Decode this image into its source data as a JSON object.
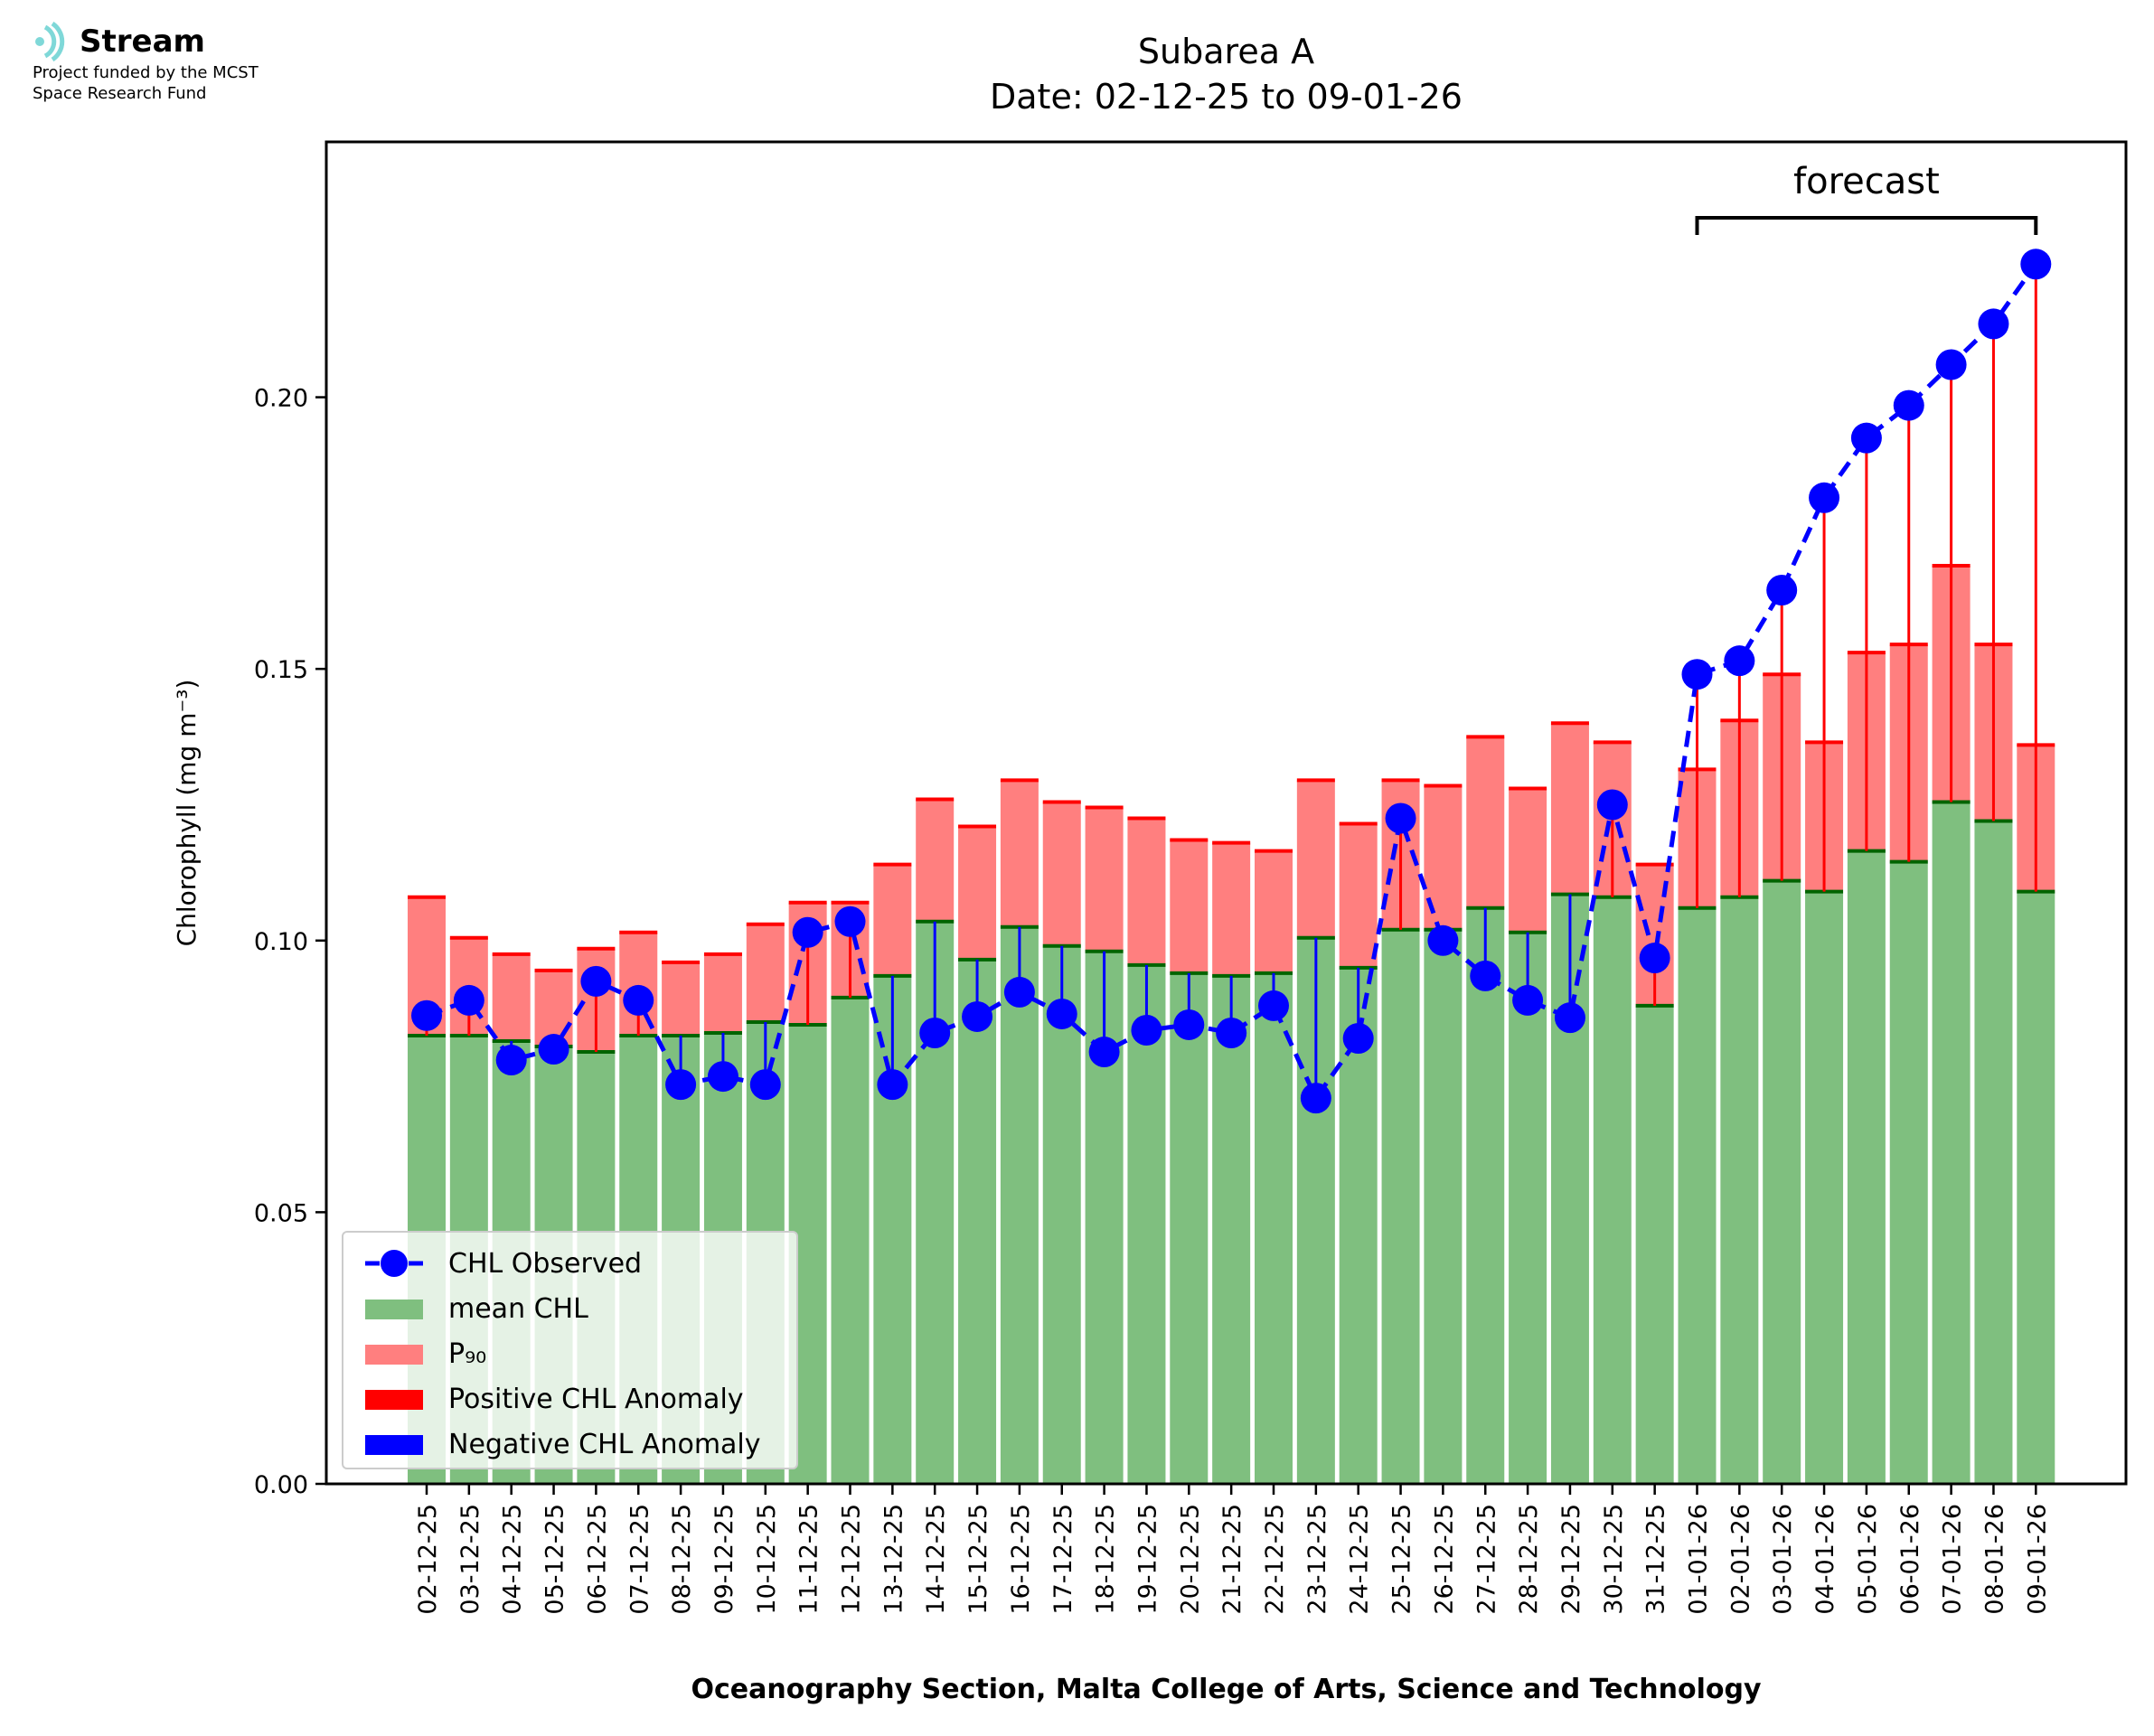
{
  "header": {
    "logo_text": "Stream",
    "funded_line1": "Project funded by the MCST",
    "funded_line2": "Space Research Fund"
  },
  "colors": {
    "mean_bar": "#7fbf7f",
    "mean_edge": "#006400",
    "p90_bar": "#ff7f7f",
    "p90_edge": "#ff0000",
    "observed": "#0000ff",
    "logo_accent": "#7fd8d8"
  },
  "chart_data": {
    "type": "bar",
    "title": "Subarea A",
    "subtitle": "Date: 02-12-25 to 09-01-26",
    "xlabel": "Oceanography Section, Malta College of Arts, Science and Technology",
    "ylabel": "Chlorophyll (mg m⁻³)",
    "ylim": [
      0,
      0.247
    ],
    "yticks": [
      "0.00",
      "0.05",
      "0.10",
      "0.15",
      "0.20"
    ],
    "ytick_values": [
      0.0,
      0.05,
      0.1,
      0.15,
      0.2
    ],
    "categories": [
      "02-12-25",
      "03-12-25",
      "04-12-25",
      "05-12-25",
      "06-12-25",
      "07-12-25",
      "08-12-25",
      "09-12-25",
      "10-12-25",
      "11-12-25",
      "12-12-25",
      "13-12-25",
      "14-12-25",
      "15-12-25",
      "16-12-25",
      "17-12-25",
      "18-12-25",
      "19-12-25",
      "20-12-25",
      "21-12-25",
      "22-12-25",
      "23-12-25",
      "24-12-25",
      "25-12-25",
      "26-12-25",
      "27-12-25",
      "28-12-25",
      "29-12-25",
      "30-12-25",
      "31-12-25",
      "01-01-26",
      "02-01-26",
      "03-01-26",
      "04-01-26",
      "05-01-26",
      "06-01-26",
      "07-01-26",
      "08-01-26",
      "09-01-26"
    ],
    "series": [
      {
        "name": "mean CHL",
        "values": [
          0.0825,
          0.0825,
          0.0815,
          0.0805,
          0.0795,
          0.0825,
          0.0825,
          0.083,
          0.085,
          0.0845,
          0.0895,
          0.0935,
          0.1035,
          0.0965,
          0.1025,
          0.099,
          0.098,
          0.0955,
          0.094,
          0.0935,
          0.094,
          0.1005,
          0.095,
          0.102,
          0.102,
          0.106,
          0.1015,
          0.1085,
          0.108,
          0.088,
          0.106,
          0.108,
          0.111,
          0.109,
          0.1165,
          0.1145,
          0.1255,
          0.122,
          0.109
        ]
      },
      {
        "name": "P₉₀",
        "values": [
          0.108,
          0.1005,
          0.0975,
          0.0945,
          0.0985,
          0.1015,
          0.096,
          0.0975,
          0.103,
          0.107,
          0.107,
          0.114,
          0.126,
          0.121,
          0.1295,
          0.1255,
          0.1245,
          0.1225,
          0.1185,
          0.118,
          0.1165,
          0.1295,
          0.1215,
          0.1295,
          0.1285,
          0.1375,
          0.128,
          0.14,
          0.1365,
          0.114,
          0.1315,
          0.1405,
          0.149,
          0.1365,
          0.153,
          0.1545,
          0.169,
          0.1545,
          0.136
        ]
      },
      {
        "name": "CHL Observed",
        "values": [
          0.0862,
          0.089,
          0.078,
          0.08,
          0.0925,
          0.089,
          0.0735,
          0.075,
          0.0735,
          0.1015,
          0.1035,
          0.0735,
          0.083,
          0.086,
          0.0905,
          0.0865,
          0.0795,
          0.0835,
          0.0845,
          0.083,
          0.088,
          0.071,
          0.082,
          0.1225,
          0.1,
          0.0935,
          0.089,
          0.0858,
          0.125,
          0.0968,
          0.149,
          0.1515,
          0.1645,
          0.1815,
          0.1925,
          0.1985,
          0.206,
          0.2135,
          0.2245
        ]
      }
    ],
    "forecast_label": "forecast",
    "forecast_range": [
      "01-01-26",
      "09-01-26"
    ],
    "legend": {
      "position": "bottom-left",
      "entries": [
        "CHL Observed",
        "mean CHL",
        "P₉₀",
        "Positive CHL Anomaly",
        "Negative CHL Anomaly"
      ]
    }
  }
}
